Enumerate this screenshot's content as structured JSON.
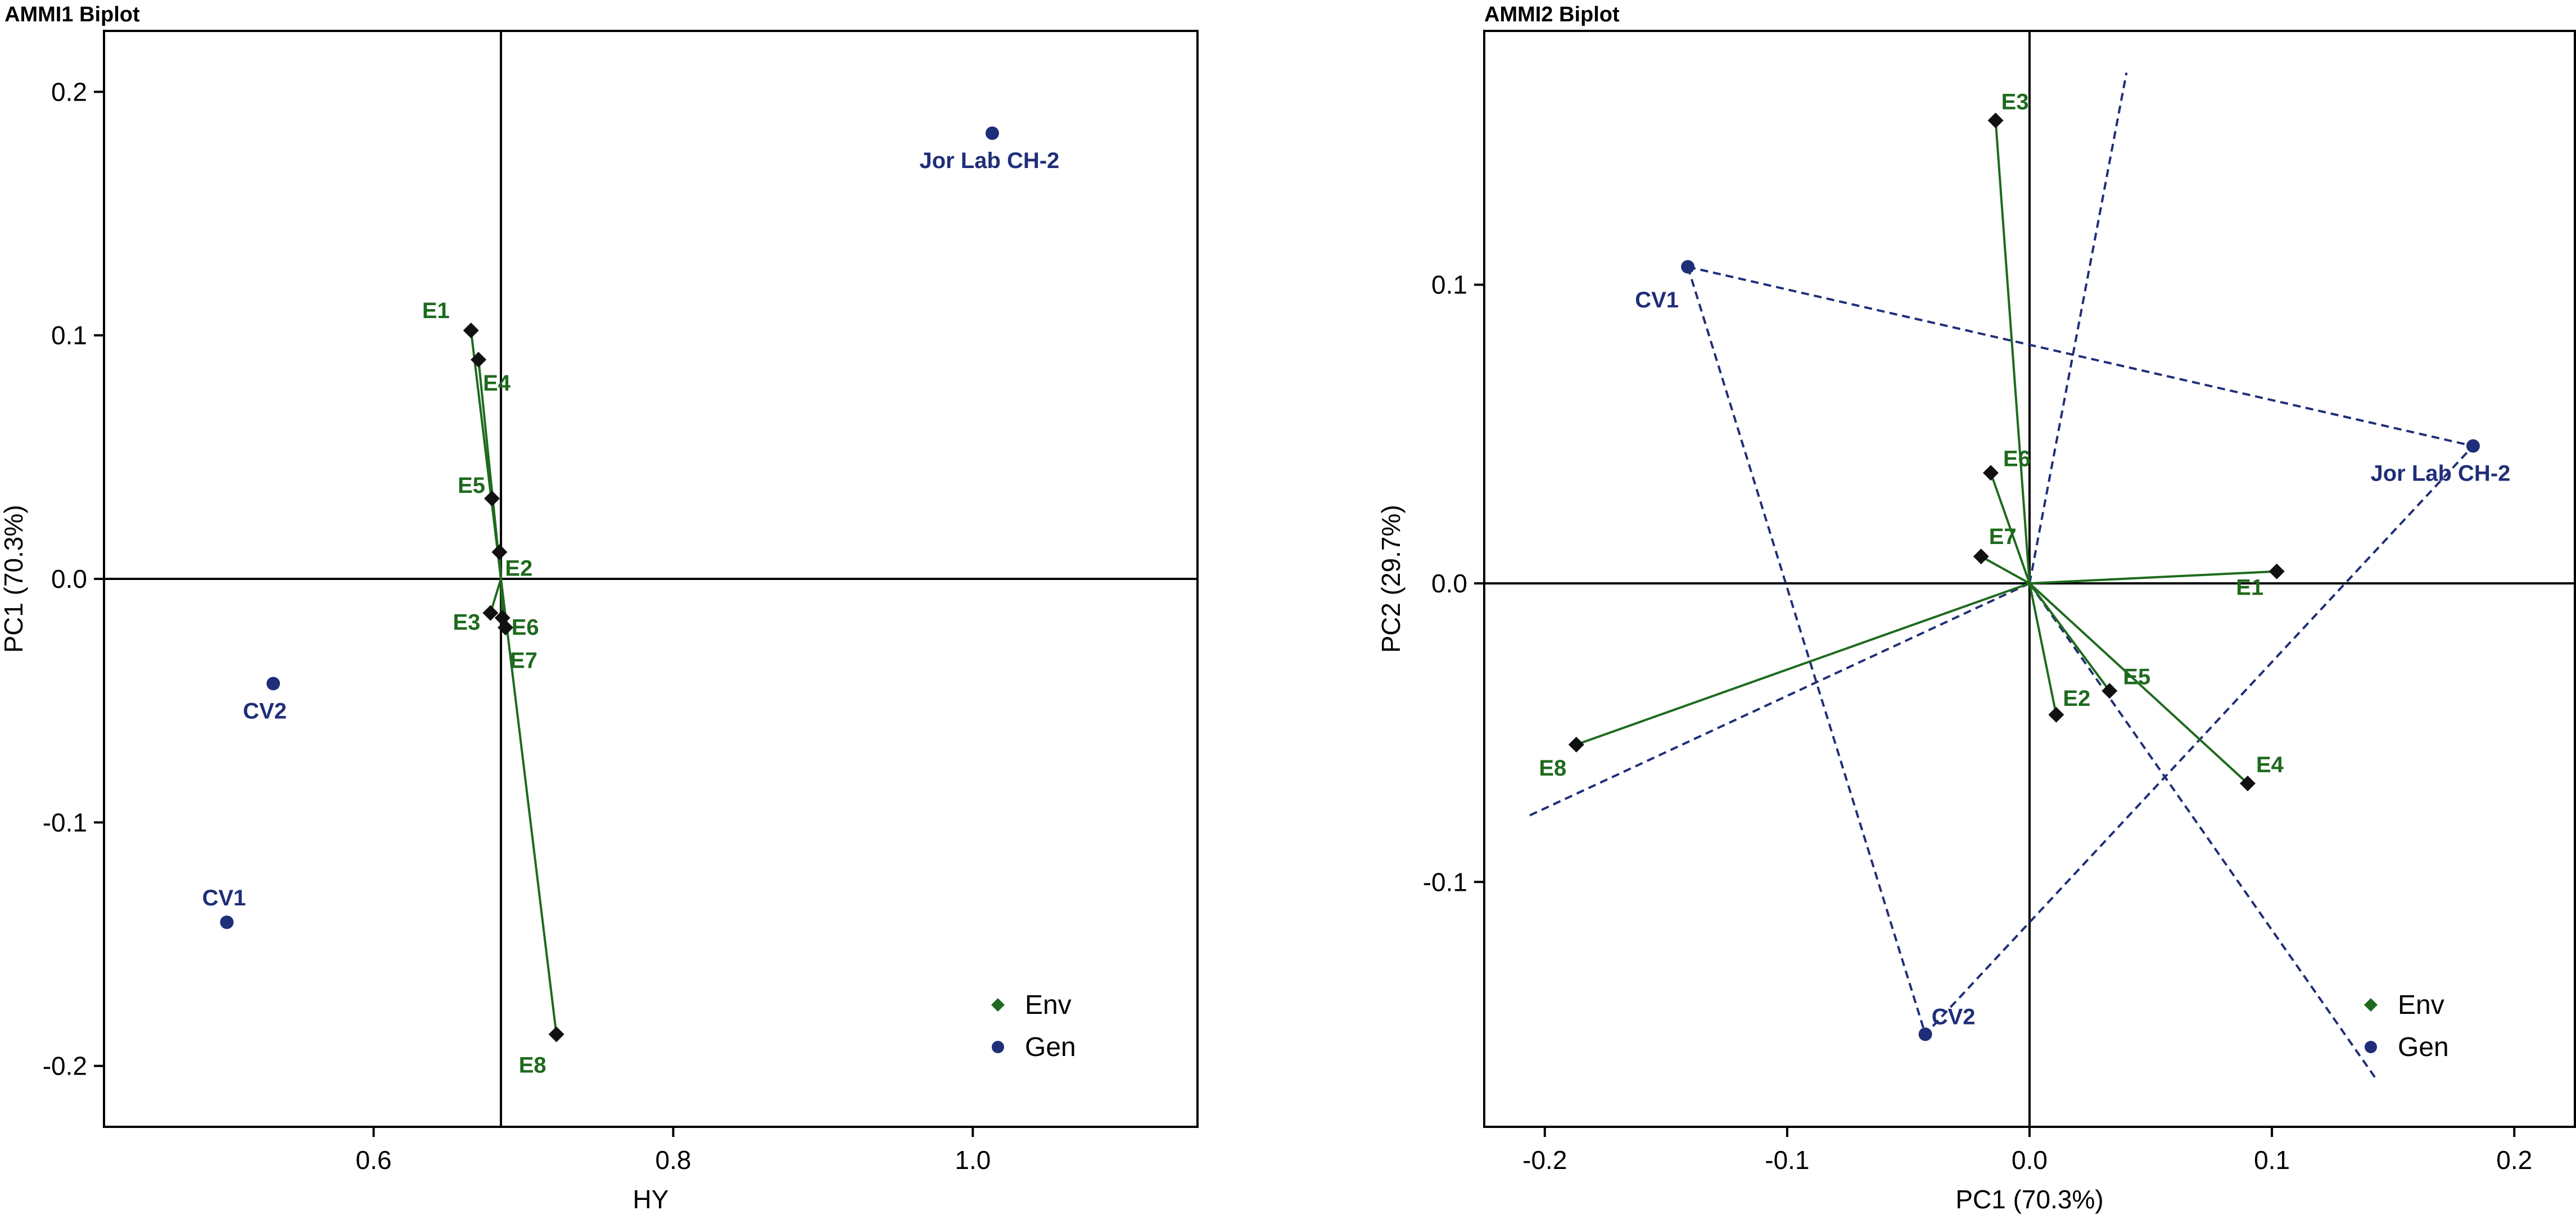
{
  "colors": {
    "env": "#1e6a1e",
    "gen": "#1f2e78",
    "axis": "#000000",
    "hull": "#1f2e78"
  },
  "chart_data": [
    {
      "id": "ammi1",
      "type": "scatter",
      "title": "AMMI1 Biplot",
      "xlabel": "HY",
      "ylabel": "PC1 (70.3%)",
      "xlim": [
        0.42,
        1.15
      ],
      "ylim": [
        -0.225,
        0.225
      ],
      "xticks": [
        0.6,
        0.8,
        1.0
      ],
      "xtick_labels": [
        "0.6",
        "0.8",
        "1.0"
      ],
      "yticks": [
        -0.2,
        -0.1,
        0.0,
        0.1,
        0.2
      ],
      "ytick_labels": [
        "-0.2",
        "-0.1",
        "0.0",
        "0.1",
        "0.2"
      ],
      "ref_lines": {
        "x": 0.685,
        "y": 0.0
      },
      "environments": [
        {
          "label": "E1",
          "x": 0.665,
          "y": 0.102
        },
        {
          "label": "E4",
          "x": 0.67,
          "y": 0.09
        },
        {
          "label": "E5",
          "x": 0.679,
          "y": 0.033
        },
        {
          "label": "E2",
          "x": 0.684,
          "y": 0.011
        },
        {
          "label": "E3",
          "x": 0.678,
          "y": -0.014
        },
        {
          "label": "E6",
          "x": 0.686,
          "y": -0.016
        },
        {
          "label": "E7",
          "x": 0.688,
          "y": -0.02
        },
        {
          "label": "E8",
          "x": 0.722,
          "y": -0.187
        }
      ],
      "genotypes": [
        {
          "label": "Jor Lab CH-2",
          "x": 1.013,
          "y": 0.183
        },
        {
          "label": "CV2",
          "x": 0.533,
          "y": -0.043
        },
        {
          "label": "CV1",
          "x": 0.502,
          "y": -0.141
        }
      ],
      "legend": {
        "position": "bottom-right",
        "items": [
          "Env",
          "Gen"
        ]
      }
    },
    {
      "id": "ammi2",
      "type": "scatter",
      "title": "AMMI2 Biplot",
      "xlabel": "PC1 (70.3%)",
      "ylabel": "PC2 (29.7%)",
      "xlim": [
        -0.225,
        0.225
      ],
      "ylim": [
        -0.182,
        0.185
      ],
      "xticks": [
        -0.2,
        -0.1,
        0.0,
        0.1,
        0.2
      ],
      "xtick_labels": [
        "-0.2",
        "-0.1",
        "0.0",
        "0.1",
        "0.2"
      ],
      "yticks": [
        -0.1,
        0.0,
        0.1
      ],
      "ytick_labels": [
        "-0.1",
        "0.0",
        "0.1"
      ],
      "ref_lines": {
        "x": 0.0,
        "y": 0.0
      },
      "environments": [
        {
          "label": "E3",
          "x": -0.014,
          "y": 0.155
        },
        {
          "label": "E6",
          "x": -0.016,
          "y": 0.037
        },
        {
          "label": "E7",
          "x": -0.02,
          "y": 0.009
        },
        {
          "label": "E1",
          "x": 0.102,
          "y": 0.004
        },
        {
          "label": "E5",
          "x": 0.033,
          "y": -0.036
        },
        {
          "label": "E2",
          "x": 0.011,
          "y": -0.044
        },
        {
          "label": "E4",
          "x": 0.09,
          "y": -0.067
        },
        {
          "label": "E8",
          "x": -0.187,
          "y": -0.054
        }
      ],
      "genotypes": [
        {
          "label": "CV1",
          "x": -0.141,
          "y": 0.106
        },
        {
          "label": "Jor Lab CH-2",
          "x": 0.183,
          "y": 0.046
        },
        {
          "label": "CV2",
          "x": -0.043,
          "y": -0.151
        }
      ],
      "hull": [
        "CV1",
        "Jor Lab CH-2",
        "CV2"
      ],
      "perpendiculars": [
        {
          "from": [
            0.0,
            0.0
          ],
          "to": [
            0.04,
            0.171
          ]
        },
        {
          "from": [
            0.0,
            0.0
          ],
          "to": [
            -0.207,
            -0.078
          ]
        },
        {
          "from": [
            0.0,
            0.0
          ],
          "to": [
            0.143,
            -0.166
          ]
        }
      ],
      "legend": {
        "position": "bottom-right",
        "items": [
          "Env",
          "Gen"
        ]
      }
    }
  ]
}
